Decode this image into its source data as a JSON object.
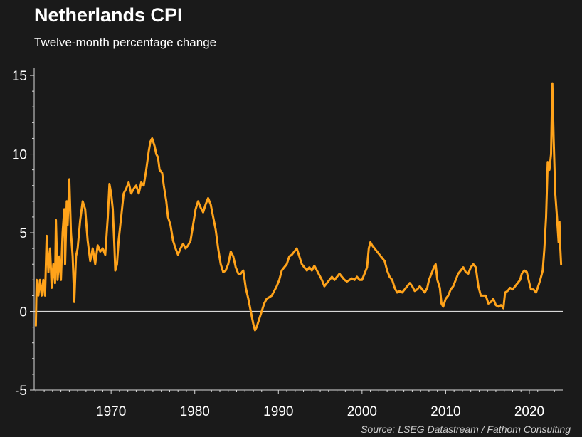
{
  "title": "Netherlands CPI",
  "subtitle": "Twelve-month percentage change",
  "source": "Source: LSEG Datastream / Fathom Consulting",
  "colors": {
    "background": "#1a1a1a",
    "line": "#ffa31a",
    "zero_line": "#d9d9d9",
    "axis": "#d9d9d9"
  },
  "chart_data": {
    "type": "line",
    "title": "Netherlands CPI",
    "subtitle": "Twelve-month percentage change",
    "xlabel": "",
    "ylabel": "",
    "xlim": [
      1960.8,
      2024.0
    ],
    "ylim": [
      -5,
      15.5
    ],
    "x_ticks": [
      1970,
      1980,
      1990,
      2000,
      2010,
      2020
    ],
    "y_ticks": [
      -5,
      0,
      5,
      10,
      15
    ],
    "grid": false,
    "zero_line": true,
    "series": [
      {
        "values": [
          [
            1961.0,
            -0.9
          ],
          [
            1961.1,
            2.0
          ],
          [
            1961.3,
            1.0
          ],
          [
            1961.5,
            2.0
          ],
          [
            1961.7,
            1.0
          ],
          [
            1961.9,
            2.0
          ],
          [
            1962.1,
            1.0
          ],
          [
            1962.3,
            4.8
          ],
          [
            1962.5,
            2.5
          ],
          [
            1962.7,
            4.0
          ],
          [
            1962.9,
            1.5
          ],
          [
            1963.1,
            3.0
          ],
          [
            1963.3,
            1.8
          ],
          [
            1963.4,
            5.8
          ],
          [
            1963.6,
            2.0
          ],
          [
            1963.8,
            3.5
          ],
          [
            1964.0,
            2.0
          ],
          [
            1964.2,
            5.0
          ],
          [
            1964.4,
            6.5
          ],
          [
            1964.5,
            3.0
          ],
          [
            1964.7,
            7.0
          ],
          [
            1964.8,
            5.5
          ],
          [
            1965.0,
            8.4
          ],
          [
            1965.2,
            5.0
          ],
          [
            1965.4,
            3.5
          ],
          [
            1965.5,
            2.0
          ],
          [
            1965.6,
            0.6
          ],
          [
            1965.8,
            3.5
          ],
          [
            1966.0,
            4.0
          ],
          [
            1966.3,
            5.8
          ],
          [
            1966.6,
            7.0
          ],
          [
            1966.9,
            6.5
          ],
          [
            1967.2,
            4.5
          ],
          [
            1967.5,
            3.2
          ],
          [
            1967.8,
            4.0
          ],
          [
            1968.1,
            3.0
          ],
          [
            1968.4,
            4.2
          ],
          [
            1968.7,
            3.8
          ],
          [
            1969.0,
            4.0
          ],
          [
            1969.3,
            3.6
          ],
          [
            1969.6,
            6.0
          ],
          [
            1969.8,
            8.1
          ],
          [
            1970.0,
            7.5
          ],
          [
            1970.2,
            6.5
          ],
          [
            1970.4,
            4.0
          ],
          [
            1970.5,
            2.6
          ],
          [
            1970.7,
            3.0
          ],
          [
            1970.9,
            4.5
          ],
          [
            1971.2,
            6.0
          ],
          [
            1971.5,
            7.5
          ],
          [
            1971.8,
            7.8
          ],
          [
            1972.1,
            8.2
          ],
          [
            1972.4,
            7.5
          ],
          [
            1972.7,
            7.8
          ],
          [
            1973.0,
            8.0
          ],
          [
            1973.3,
            7.5
          ],
          [
            1973.6,
            8.2
          ],
          [
            1973.9,
            8.0
          ],
          [
            1974.2,
            9.0
          ],
          [
            1974.5,
            10.2
          ],
          [
            1974.7,
            10.8
          ],
          [
            1974.9,
            11.0
          ],
          [
            1975.2,
            10.5
          ],
          [
            1975.4,
            10.0
          ],
          [
            1975.6,
            9.8
          ],
          [
            1975.8,
            9.0
          ],
          [
            1976.1,
            8.8
          ],
          [
            1976.3,
            8.0
          ],
          [
            1976.6,
            7.0
          ],
          [
            1976.8,
            6.0
          ],
          [
            1977.1,
            5.5
          ],
          [
            1977.4,
            4.5
          ],
          [
            1977.7,
            4.0
          ],
          [
            1978.0,
            3.6
          ],
          [
            1978.3,
            4.0
          ],
          [
            1978.6,
            4.3
          ],
          [
            1978.9,
            4.0
          ],
          [
            1979.2,
            4.2
          ],
          [
            1979.5,
            4.5
          ],
          [
            1979.8,
            5.5
          ],
          [
            1980.1,
            6.5
          ],
          [
            1980.4,
            7.0
          ],
          [
            1980.7,
            6.6
          ],
          [
            1981.0,
            6.3
          ],
          [
            1981.3,
            6.8
          ],
          [
            1981.6,
            7.2
          ],
          [
            1981.9,
            6.8
          ],
          [
            1982.2,
            6.0
          ],
          [
            1982.5,
            5.2
          ],
          [
            1982.8,
            4.0
          ],
          [
            1983.1,
            3.0
          ],
          [
            1983.4,
            2.5
          ],
          [
            1983.7,
            2.6
          ],
          [
            1984.0,
            3.0
          ],
          [
            1984.3,
            3.8
          ],
          [
            1984.6,
            3.5
          ],
          [
            1984.9,
            2.8
          ],
          [
            1985.2,
            2.4
          ],
          [
            1985.5,
            2.4
          ],
          [
            1985.8,
            2.6
          ],
          [
            1986.1,
            1.5
          ],
          [
            1986.4,
            0.8
          ],
          [
            1986.7,
            0.0
          ],
          [
            1987.0,
            -0.8
          ],
          [
            1987.2,
            -1.2
          ],
          [
            1987.4,
            -1.0
          ],
          [
            1987.7,
            -0.5
          ],
          [
            1988.0,
            0.0
          ],
          [
            1988.3,
            0.5
          ],
          [
            1988.6,
            0.8
          ],
          [
            1988.9,
            0.9
          ],
          [
            1989.2,
            1.0
          ],
          [
            1989.5,
            1.3
          ],
          [
            1989.8,
            1.6
          ],
          [
            1990.1,
            2.0
          ],
          [
            1990.4,
            2.6
          ],
          [
            1990.7,
            2.8
          ],
          [
            1991.0,
            3.0
          ],
          [
            1991.3,
            3.5
          ],
          [
            1991.6,
            3.6
          ],
          [
            1991.9,
            3.8
          ],
          [
            1992.2,
            4.0
          ],
          [
            1992.5,
            3.5
          ],
          [
            1992.8,
            3.0
          ],
          [
            1993.1,
            2.8
          ],
          [
            1993.4,
            2.6
          ],
          [
            1993.7,
            2.8
          ],
          [
            1994.0,
            2.6
          ],
          [
            1994.3,
            2.9
          ],
          [
            1994.6,
            2.6
          ],
          [
            1994.9,
            2.3
          ],
          [
            1995.2,
            2.0
          ],
          [
            1995.5,
            1.6
          ],
          [
            1995.8,
            1.8
          ],
          [
            1996.1,
            2.0
          ],
          [
            1996.4,
            2.2
          ],
          [
            1996.7,
            2.0
          ],
          [
            1997.0,
            2.2
          ],
          [
            1997.3,
            2.4
          ],
          [
            1997.6,
            2.2
          ],
          [
            1997.9,
            2.0
          ],
          [
            1998.2,
            1.9
          ],
          [
            1998.5,
            2.0
          ],
          [
            1998.8,
            2.1
          ],
          [
            1999.1,
            2.0
          ],
          [
            1999.4,
            2.2
          ],
          [
            1999.7,
            2.0
          ],
          [
            2000.0,
            2.0
          ],
          [
            2000.3,
            2.4
          ],
          [
            2000.6,
            2.8
          ],
          [
            2000.8,
            4.0
          ],
          [
            2001.0,
            4.4
          ],
          [
            2001.2,
            4.2
          ],
          [
            2001.5,
            4.0
          ],
          [
            2001.8,
            3.8
          ],
          [
            2002.1,
            3.6
          ],
          [
            2002.4,
            3.4
          ],
          [
            2002.7,
            3.2
          ],
          [
            2003.0,
            2.6
          ],
          [
            2003.3,
            2.2
          ],
          [
            2003.6,
            2.0
          ],
          [
            2003.9,
            1.5
          ],
          [
            2004.2,
            1.2
          ],
          [
            2004.5,
            1.3
          ],
          [
            2004.8,
            1.2
          ],
          [
            2005.1,
            1.4
          ],
          [
            2005.4,
            1.6
          ],
          [
            2005.7,
            1.8
          ],
          [
            2006.0,
            1.6
          ],
          [
            2006.3,
            1.3
          ],
          [
            2006.6,
            1.4
          ],
          [
            2006.9,
            1.6
          ],
          [
            2007.2,
            1.4
          ],
          [
            2007.5,
            1.2
          ],
          [
            2007.8,
            1.5
          ],
          [
            2008.0,
            2.0
          ],
          [
            2008.3,
            2.4
          ],
          [
            2008.6,
            2.8
          ],
          [
            2008.8,
            3.0
          ],
          [
            2009.0,
            2.0
          ],
          [
            2009.3,
            1.5
          ],
          [
            2009.5,
            0.5
          ],
          [
            2009.7,
            0.3
          ],
          [
            2010.0,
            0.8
          ],
          [
            2010.3,
            1.0
          ],
          [
            2010.6,
            1.4
          ],
          [
            2010.9,
            1.6
          ],
          [
            2011.2,
            2.0
          ],
          [
            2011.5,
            2.4
          ],
          [
            2011.8,
            2.6
          ],
          [
            2012.1,
            2.8
          ],
          [
            2012.4,
            2.5
          ],
          [
            2012.7,
            2.4
          ],
          [
            2013.0,
            2.8
          ],
          [
            2013.3,
            3.0
          ],
          [
            2013.6,
            2.8
          ],
          [
            2013.9,
            1.6
          ],
          [
            2014.2,
            1.0
          ],
          [
            2014.5,
            1.0
          ],
          [
            2014.8,
            1.0
          ],
          [
            2015.1,
            0.5
          ],
          [
            2015.4,
            0.6
          ],
          [
            2015.7,
            0.8
          ],
          [
            2016.0,
            0.4
          ],
          [
            2016.3,
            0.3
          ],
          [
            2016.6,
            0.4
          ],
          [
            2016.9,
            0.2
          ],
          [
            2017.1,
            1.2
          ],
          [
            2017.4,
            1.3
          ],
          [
            2017.7,
            1.5
          ],
          [
            2018.0,
            1.4
          ],
          [
            2018.3,
            1.6
          ],
          [
            2018.6,
            1.8
          ],
          [
            2018.9,
            2.0
          ],
          [
            2019.1,
            2.4
          ],
          [
            2019.4,
            2.6
          ],
          [
            2019.7,
            2.5
          ],
          [
            2020.0,
            1.8
          ],
          [
            2020.2,
            1.4
          ],
          [
            2020.5,
            1.4
          ],
          [
            2020.8,
            1.2
          ],
          [
            2021.0,
            1.5
          ],
          [
            2021.3,
            2.0
          ],
          [
            2021.6,
            2.6
          ],
          [
            2021.8,
            4.0
          ],
          [
            2022.0,
            6.0
          ],
          [
            2022.2,
            9.5
          ],
          [
            2022.4,
            9.0
          ],
          [
            2022.6,
            10.0
          ],
          [
            2022.75,
            14.5
          ],
          [
            2022.9,
            11.0
          ],
          [
            2023.1,
            7.5
          ],
          [
            2023.3,
            6.0
          ],
          [
            2023.5,
            4.4
          ],
          [
            2023.6,
            5.7
          ],
          [
            2023.7,
            4.0
          ],
          [
            2023.8,
            3.0
          ]
        ]
      }
    ]
  }
}
